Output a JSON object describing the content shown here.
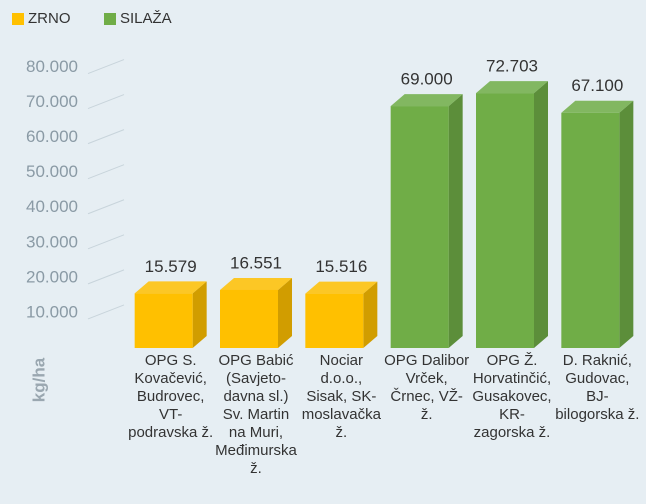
{
  "chart_data": {
    "type": "bar3d",
    "categories": [
      "OPG S. Kovačević, Budrovec, VT-podravska ž.",
      "OPG Babić (Savjeto-davna sl.) Sv. Martin na Muri, Međimurska ž.",
      "Nociar d.o.o., Sisak, SK-moslavačka ž.",
      "OPG Dalibor Vrček, Črnec, VŽ- ž.",
      "OPG Ž. Horvatinčić, Gusakovec, KR-zagorska ž.",
      "D. Raknić, Gudovac, BJ-bilogorska ž."
    ],
    "series": [
      {
        "name": "ZRNO",
        "color": "#ffc000",
        "values": [
          15579,
          16551,
          15516,
          null,
          null,
          null
        ],
        "value_labels": [
          "15.579",
          "16.551",
          "15.516",
          null,
          null,
          null
        ]
      },
      {
        "name": "SILAŽA",
        "color": "#70ad47",
        "values": [
          null,
          null,
          null,
          69000,
          72703,
          67100
        ],
        "value_labels": [
          null,
          null,
          null,
          "69.000",
          "72.703",
          "67.100"
        ]
      }
    ],
    "ylabel": "kg/ha",
    "ylim": [
      0,
      85000
    ],
    "yticks": [
      {
        "value": 10000,
        "label": "10.000"
      },
      {
        "value": 20000,
        "label": "20.000"
      },
      {
        "value": 30000,
        "label": "30.000"
      },
      {
        "value": 40000,
        "label": "40.000"
      },
      {
        "value": 50000,
        "label": "50.000"
      },
      {
        "value": 60000,
        "label": "60.000"
      },
      {
        "value": 70000,
        "label": "70.000"
      },
      {
        "value": 80000,
        "label": "80.000"
      }
    ],
    "grid": true,
    "legend": "top-left"
  }
}
